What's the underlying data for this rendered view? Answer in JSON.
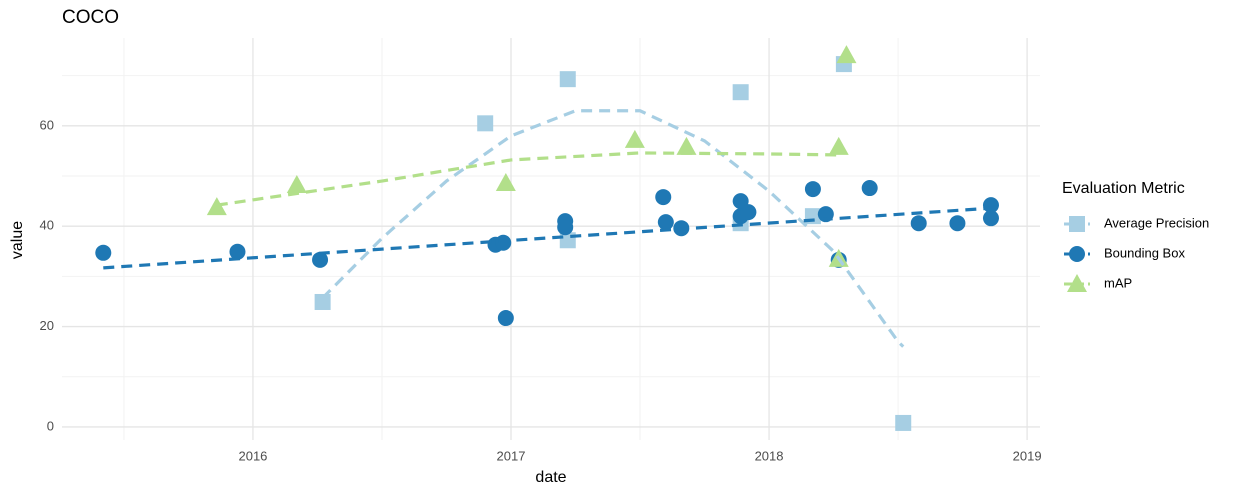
{
  "chart_data": {
    "type": "scatter",
    "title": "COCO",
    "x_label": "date",
    "y_label": "value",
    "xlim": [
      2015.26,
      2019.05
    ],
    "ylim": [
      -2.6,
      77.5
    ],
    "xticks": [
      2016,
      2017,
      2018,
      2019
    ],
    "yticks": [
      0,
      20,
      40,
      60
    ],
    "minor_xticks": [
      2015.5,
      2016.5,
      2017.5,
      2018.5
    ],
    "minor_yticks": [
      10,
      30,
      50,
      70
    ],
    "grid": true,
    "legend_title": "Evaluation Metric",
    "legend_position": "right",
    "series": [
      {
        "name": "Average Precision",
        "color": "#a6cee3",
        "marker": "square",
        "x": [
          2016.27,
          2016.9,
          2017.22,
          2017.22,
          2017.89,
          2017.89,
          2018.17,
          2018.29,
          2018.52
        ],
        "values": [
          24.9,
          60.5,
          69.3,
          37.2,
          66.7,
          40.6,
          42.0,
          72.3,
          0.8
        ],
        "trend": {
          "x": [
            2016.27,
            2016.5,
            2016.75,
            2017.0,
            2017.25,
            2017.5,
            2017.75,
            2018.0,
            2018.25,
            2018.5,
            2018.52
          ],
          "values": [
            25.7,
            37.6,
            49,
            58,
            63,
            63,
            57,
            47,
            35,
            17,
            16
          ]
        }
      },
      {
        "name": "Bounding Box",
        "color": "#1f78b4",
        "marker": "circle",
        "x": [
          2015.42,
          2015.94,
          2016.26,
          2016.94,
          2016.97,
          2016.98,
          2017.21,
          2017.21,
          2017.59,
          2017.6,
          2017.66,
          2017.89,
          2017.89,
          2017.92,
          2018.17,
          2018.22,
          2018.27,
          2018.39,
          2018.58,
          2018.73,
          2018.86,
          2018.86
        ],
        "values": [
          34.7,
          34.9,
          33.3,
          36.3,
          36.7,
          21.7,
          41.0,
          39.8,
          45.8,
          40.8,
          39.6,
          45.0,
          42.0,
          42.8,
          47.4,
          42.4,
          33.3,
          47.6,
          40.6,
          40.6,
          44.2,
          41.6
        ],
        "trend": {
          "x": [
            2015.42,
            2018.86
          ],
          "values": [
            31.7,
            43.6
          ]
        }
      },
      {
        "name": "mAP",
        "color": "#b2df8a",
        "marker": "triangle",
        "x": [
          2015.86,
          2016.17,
          2016.98,
          2017.48,
          2017.68,
          2018.27,
          2018.27,
          2018.3
        ],
        "values": [
          43.8,
          48.2,
          48.6,
          57.2,
          55.8,
          55.8,
          33.5,
          74.1
        ],
        "trend": {
          "x": [
            2015.86,
            2016.5,
            2017.0,
            2017.5,
            2018.0,
            2018.27
          ],
          "values": [
            44.2,
            49,
            53.2,
            54.6,
            54.4,
            54.2
          ]
        }
      }
    ]
  }
}
